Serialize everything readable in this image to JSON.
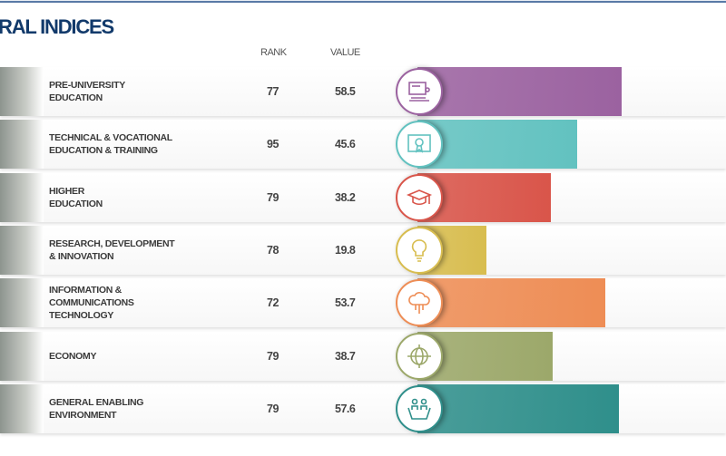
{
  "title": "RAL INDICES",
  "headers": {
    "rank": "RANK",
    "value": "VALUE"
  },
  "max_value": 100,
  "rows": [
    {
      "label": "PRE-UNIVERSITY\nEDUCATION",
      "rank": "77",
      "value": "58.5",
      "v": 58.5,
      "color": "#9b62a0",
      "icon": "classroom-icon"
    },
    {
      "label": "TECHNICAL & VOCATIONAL\n EDUCATION & TRAINING",
      "rank": "95",
      "value": "45.6",
      "v": 45.6,
      "color": "#62c2c0",
      "icon": "certificate-icon"
    },
    {
      "label": "HIGHER\nEDUCATION",
      "rank": "79",
      "value": "38.2",
      "v": 38.2,
      "color": "#d9554a",
      "icon": "graduation-cap-icon"
    },
    {
      "label": "RESEARCH, DEVELOPMENT\n& INNOVATION",
      "rank": "78",
      "value": "19.8",
      "v": 19.8,
      "color": "#d8bd4f",
      "icon": "lightbulb-icon"
    },
    {
      "label": "INFORMATION &\nCOMMUNICATIONS\nTECHNOLOGY",
      "rank": "72",
      "value": "53.7",
      "v": 53.7,
      "color": "#ee8d55",
      "icon": "cloud-network-icon"
    },
    {
      "label": "ECONOMY",
      "rank": "79",
      "value": "38.7",
      "v": 38.7,
      "color": "#9ca86a",
      "icon": "globe-icon"
    },
    {
      "label": "GENERAL ENABLING\nENVIRONMENT",
      "rank": "79",
      "value": "57.6",
      "v": 57.6,
      "color": "#2f8f8b",
      "icon": "people-hands-icon"
    }
  ]
}
